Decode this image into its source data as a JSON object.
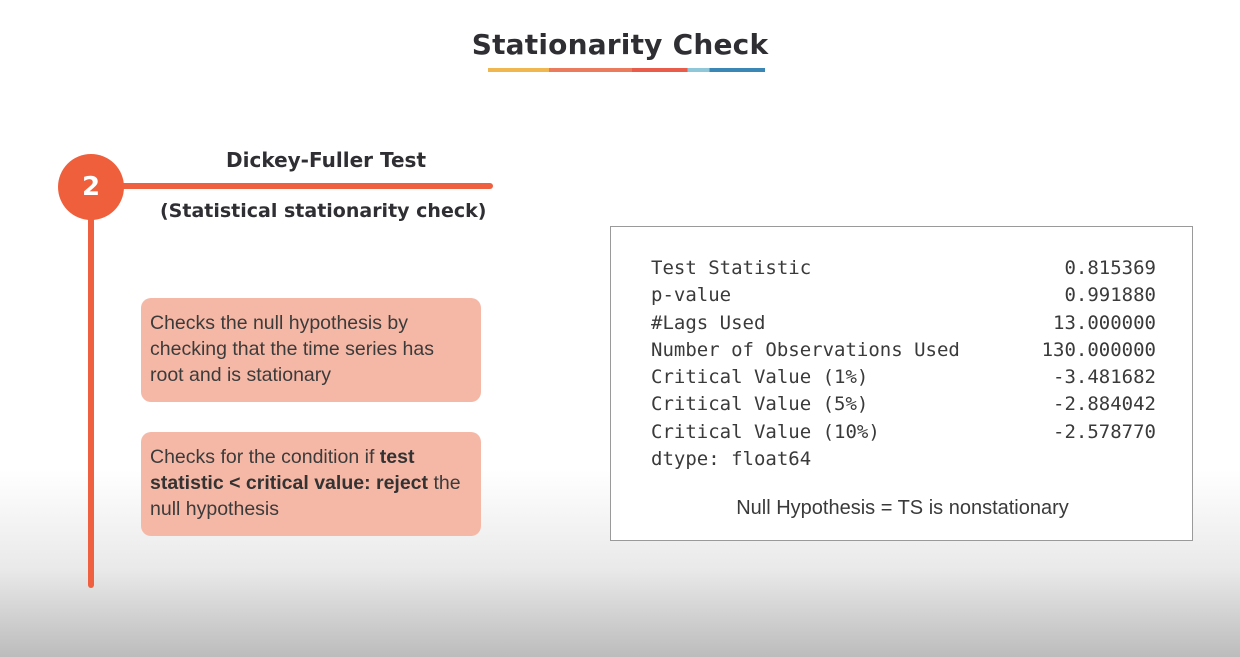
{
  "title": "Stationarity Check",
  "step": {
    "number": "2",
    "name": "Dickey-Fuller Test",
    "subtitle": "(Statistical stationarity check)"
  },
  "cards": [
    {
      "text": "Checks the null hypothesis by checking that the time series has root and is stationary"
    },
    {
      "text_before": "Checks for the condition if ",
      "text_bold": "test statistic < critical value: reject",
      "text_after": " the null hypothesis"
    }
  ],
  "results": {
    "rows": [
      {
        "label": "Test Statistic",
        "value": "0.815369"
      },
      {
        "label": "p-value",
        "value": "0.991880"
      },
      {
        "label": "#Lags Used",
        "value": "13.000000"
      },
      {
        "label": "Number of Observations Used",
        "value": "130.000000"
      },
      {
        "label": "Critical Value (1%)",
        "value": "-3.481682"
      },
      {
        "label": "Critical Value (5%)",
        "value": "-2.884042"
      },
      {
        "label": "Critical Value (10%)",
        "value": "-2.578770"
      }
    ],
    "dtype": "dtype: float64",
    "null_hypothesis": "Null Hypothesis = TS is nonstationary"
  },
  "colors": {
    "accent": "#ee6040",
    "card_bg": "#f6b8a6"
  }
}
